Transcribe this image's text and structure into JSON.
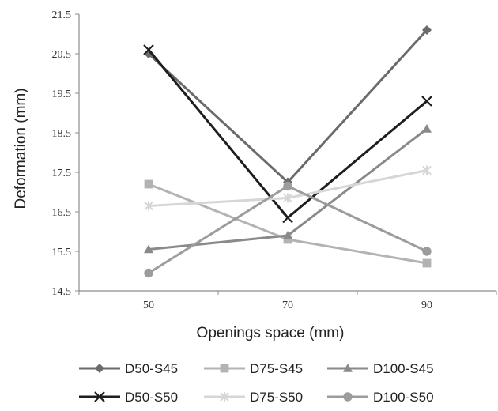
{
  "chart_data": {
    "type": "line",
    "title": "",
    "xlabel": "Openings space (mm)",
    "ylabel": "Deformation (mm)",
    "categories": [
      "50",
      "70",
      "90"
    ],
    "y_ticks": [
      "14.5",
      "15.5",
      "16.5",
      "17.5",
      "18.5",
      "19.5",
      "20.5",
      "21.5"
    ],
    "ylim": [
      14.5,
      21.5
    ],
    "grid": false,
    "legend_position": "bottom",
    "series": [
      {
        "name": "D50-S45",
        "values": [
          20.5,
          17.25,
          21.1
        ],
        "color": "#6b6b6b",
        "marker": "diamond"
      },
      {
        "name": "D75-S45",
        "values": [
          17.2,
          15.8,
          15.2
        ],
        "color": "#b3b3b3",
        "marker": "square"
      },
      {
        "name": "D100-S45",
        "values": [
          15.55,
          15.9,
          18.6
        ],
        "color": "#8a8a8a",
        "marker": "triangle"
      },
      {
        "name": "D50-S50",
        "values": [
          20.6,
          16.35,
          19.3
        ],
        "color": "#1e1e1e",
        "marker": "x"
      },
      {
        "name": "D75-S50",
        "values": [
          16.65,
          16.85,
          17.55
        ],
        "color": "#d6d6d6",
        "marker": "star"
      },
      {
        "name": "D100-S50",
        "values": [
          14.95,
          17.15,
          15.5
        ],
        "color": "#9c9c9c",
        "marker": "circle"
      }
    ]
  }
}
